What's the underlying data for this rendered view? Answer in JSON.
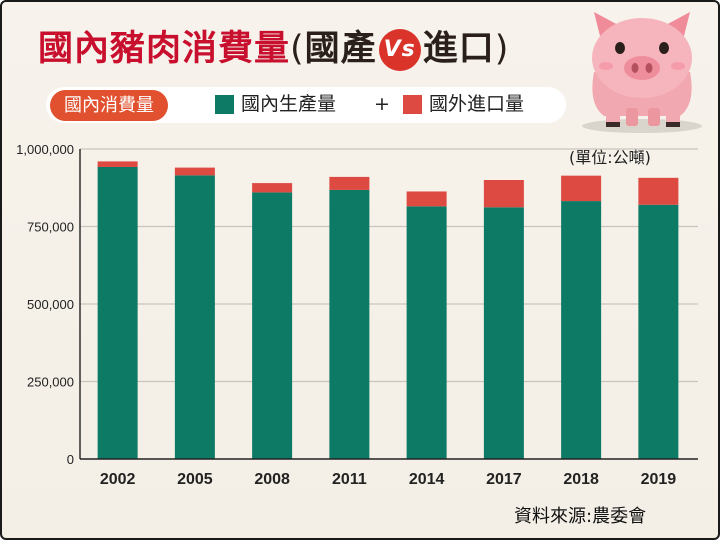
{
  "title": {
    "part1": "國內豬肉消費量",
    "open_paren": "(",
    "part2": "國產",
    "vs": "Vs",
    "part3": "進口",
    "close_paren": ")"
  },
  "pill_label": "國內消費量",
  "legend": {
    "domestic_label": "國內生產量",
    "plus": "+",
    "import_label": "國外進口量"
  },
  "unit": "(單位:公噸)",
  "source": "資料來源:農委會",
  "colors": {
    "domestic": "#0d7a66",
    "import": "#dd4a42",
    "title_red": "#c8102e",
    "pill": "#e1512f"
  },
  "chart_data": {
    "type": "bar",
    "stacked": true,
    "categories": [
      "2002",
      "2005",
      "2008",
      "2011",
      "2014",
      "2017",
      "2018",
      "2019"
    ],
    "series": [
      {
        "name": "國內生產量",
        "values": [
          942000,
          915000,
          860000,
          868000,
          815000,
          812000,
          832000,
          820000
        ]
      },
      {
        "name": "國外進口量",
        "values": [
          18000,
          25000,
          30000,
          42000,
          48000,
          88000,
          82000,
          87000
        ]
      }
    ],
    "yticks": [
      "0",
      "250,000",
      "500,000",
      "750,000",
      "1,000,000"
    ],
    "ytick_values": [
      0,
      250000,
      500000,
      750000,
      1000000
    ],
    "ylim": [
      0,
      1000000
    ],
    "grid": true,
    "legend_position": "top"
  },
  "icons": {
    "mascot": "pig-icon"
  }
}
